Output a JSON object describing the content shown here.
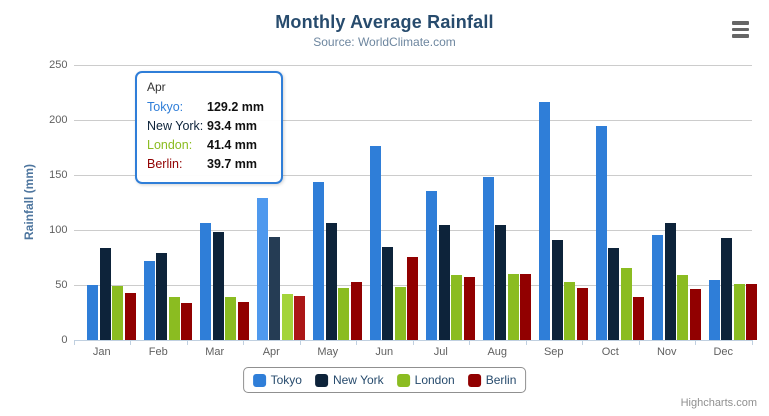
{
  "chart_data": {
    "type": "bar",
    "title": "Monthly Average Rainfall",
    "subtitle": "Source: WorldClimate.com",
    "xlabel": "",
    "ylabel": "Rainfall (mm)",
    "ylim": [
      0,
      250
    ],
    "yticks": [
      0,
      50,
      100,
      150,
      200,
      250
    ],
    "grid": true,
    "legend_position": "bottom",
    "categories": [
      "Jan",
      "Feb",
      "Mar",
      "Apr",
      "May",
      "Jun",
      "Jul",
      "Aug",
      "Sep",
      "Oct",
      "Nov",
      "Dec"
    ],
    "series": [
      {
        "name": "Tokyo",
        "color": "#2f7ed8",
        "hover_color": "#4f99ee",
        "values": [
          49.9,
          71.5,
          106.4,
          129.2,
          144.0,
          176.0,
          135.6,
          148.5,
          216.4,
          194.1,
          95.6,
          54.4
        ]
      },
      {
        "name": "New York",
        "color": "#0d233a",
        "hover_color": "#253c54",
        "values": [
          83.6,
          78.8,
          98.5,
          93.4,
          106.0,
          84.5,
          105.0,
          104.3,
          91.2,
          83.5,
          106.6,
          92.3
        ]
      },
      {
        "name": "London",
        "color": "#8bbc21",
        "hover_color": "#a4d43a",
        "values": [
          48.9,
          38.8,
          39.3,
          41.4,
          47.0,
          48.3,
          59.0,
          59.6,
          52.4,
          65.2,
          59.3,
          51.2
        ]
      },
      {
        "name": "Berlin",
        "color": "#910000",
        "hover_color": "#ab1616",
        "values": [
          42.4,
          33.2,
          34.5,
          39.7,
          52.6,
          75.5,
          57.4,
          60.4,
          47.6,
          39.1,
          46.8,
          51.1
        ]
      }
    ],
    "hovered_category": "Apr",
    "hovered_category_index": 3
  },
  "tooltip": {
    "header": "Apr",
    "rows": [
      {
        "label": "Tokyo:",
        "value": "129.2 mm",
        "color": "#2f7ed8"
      },
      {
        "label": "New York:",
        "value": "93.4 mm",
        "color": "#0d233a"
      },
      {
        "label": "London:",
        "value": "41.4 mm",
        "color": "#8bbc21"
      },
      {
        "label": "Berlin:",
        "value": "39.7 mm",
        "color": "#910000"
      }
    ],
    "border_color": "#2f7ed8"
  },
  "credits": {
    "label": "Highcharts.com"
  },
  "colors": {
    "title": "#274b6d",
    "subtitle": "#6d869f",
    "axis_title": "#4d759e",
    "axis_labels": "#606060",
    "grid_line": "#cccccc",
    "axis_line": "#c0d0e0",
    "legend_text": "#274b6d",
    "legend_border": "#909090"
  }
}
